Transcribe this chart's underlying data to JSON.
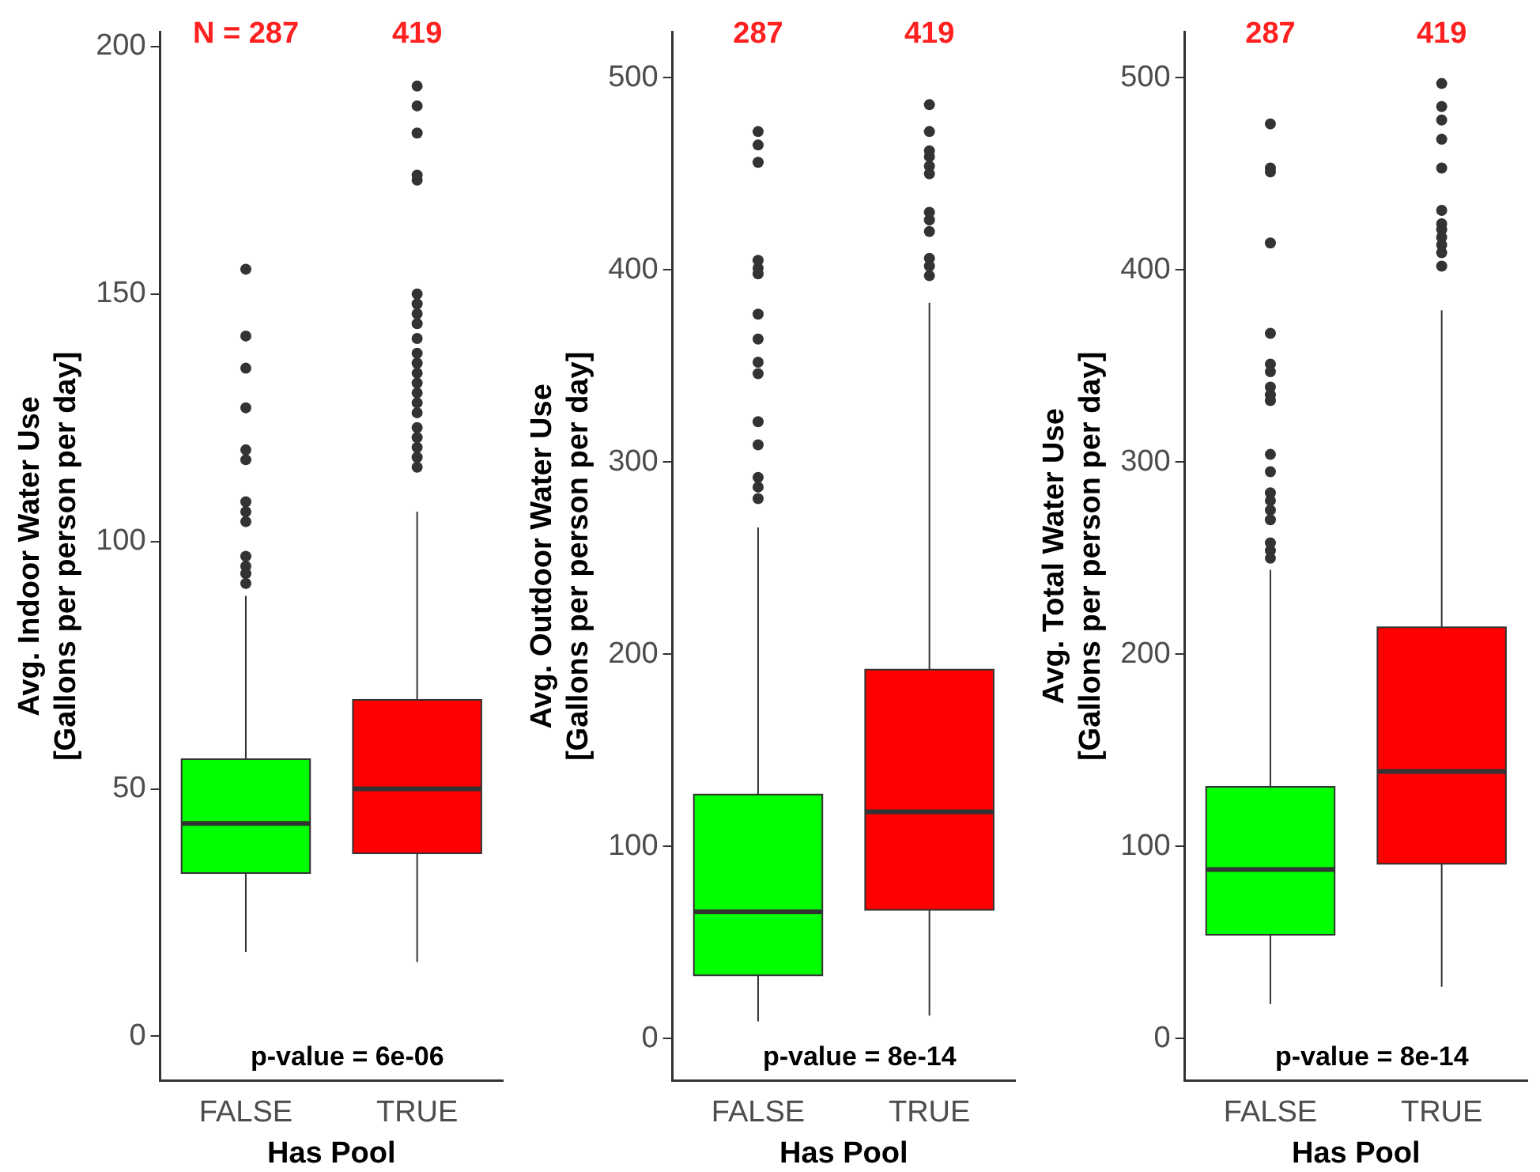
{
  "chart_data": [
    {
      "type": "box",
      "ylabel": "Avg. Indoor Water Use\n[Gallons per person per day]",
      "xlabel": "Has Pool",
      "categories": [
        "FALSE",
        "TRUE"
      ],
      "colors": [
        "#00ff00",
        "#ff0000"
      ],
      "ylim": [
        -9,
        203
      ],
      "yticks": [
        0,
        50,
        100,
        150,
        200
      ],
      "grid": false,
      "boxes": [
        {
          "low": 17,
          "q1": 33,
          "median": 43,
          "q3": 56,
          "high": 89,
          "outliers": [
            155,
            141.5,
            135,
            127,
            118.5,
            116.5,
            108,
            106,
            104,
            97,
            95,
            93.5,
            91.5
          ]
        },
        {
          "low": 15,
          "q1": 37,
          "median": 50,
          "q3": 68,
          "high": 106,
          "outliers": [
            192,
            188,
            182.5,
            174,
            173,
            150,
            148,
            146,
            144,
            141,
            138,
            136,
            134,
            132,
            130,
            128,
            126,
            123,
            121,
            119,
            117,
            115
          ]
        }
      ],
      "annotations": [
        "N = 287",
        "419",
        "p-value = 6e-06"
      ]
    },
    {
      "type": "box",
      "ylabel": "Avg. Outdoor Water Use\n[Gallons per person per day]",
      "xlabel": "Has Pool",
      "categories": [
        "FALSE",
        "TRUE"
      ],
      "colors": [
        "#00ff00",
        "#ff0000"
      ],
      "ylim": [
        -22,
        524
      ],
      "yticks": [
        0,
        100,
        200,
        300,
        400,
        500
      ],
      "grid": false,
      "boxes": [
        {
          "low": 9,
          "q1": 33,
          "median": 66,
          "q3": 127,
          "high": 266,
          "outliers": [
            472,
            465,
            456,
            405,
            401,
            398,
            377,
            364,
            352,
            346,
            321,
            309,
            292,
            287,
            281
          ]
        },
        {
          "low": 12,
          "q1": 67,
          "median": 118,
          "q3": 192,
          "high": 383,
          "outliers": [
            486,
            472,
            462,
            459,
            454,
            450,
            430,
            426,
            420,
            406,
            402,
            397
          ]
        }
      ],
      "annotations": [
        "287",
        "419",
        "p-value = 8e-14"
      ]
    },
    {
      "type": "box",
      "ylabel": "Avg. Total Water Use\n[Gallons per person per day]",
      "xlabel": "Has Pool",
      "categories": [
        "FALSE",
        "TRUE"
      ],
      "colors": [
        "#00ff00",
        "#ff0000"
      ],
      "ylim": [
        -22,
        524
      ],
      "yticks": [
        0,
        100,
        200,
        300,
        400,
        500
      ],
      "grid": false,
      "boxes": [
        {
          "low": 18,
          "q1": 54,
          "median": 88,
          "q3": 131,
          "high": 244,
          "outliers": [
            476,
            453,
            451,
            414,
            367,
            351,
            347,
            339,
            335,
            332,
            304,
            295,
            284,
            280,
            275,
            270,
            258,
            254,
            250
          ]
        },
        {
          "low": 27,
          "q1": 91,
          "median": 139,
          "q3": 214,
          "high": 379,
          "outliers": [
            497,
            485,
            478,
            468,
            453,
            431,
            424,
            421,
            417,
            413,
            409,
            402
          ]
        }
      ],
      "annotations": [
        "287",
        "419",
        "p-value = 8e-14"
      ]
    }
  ]
}
